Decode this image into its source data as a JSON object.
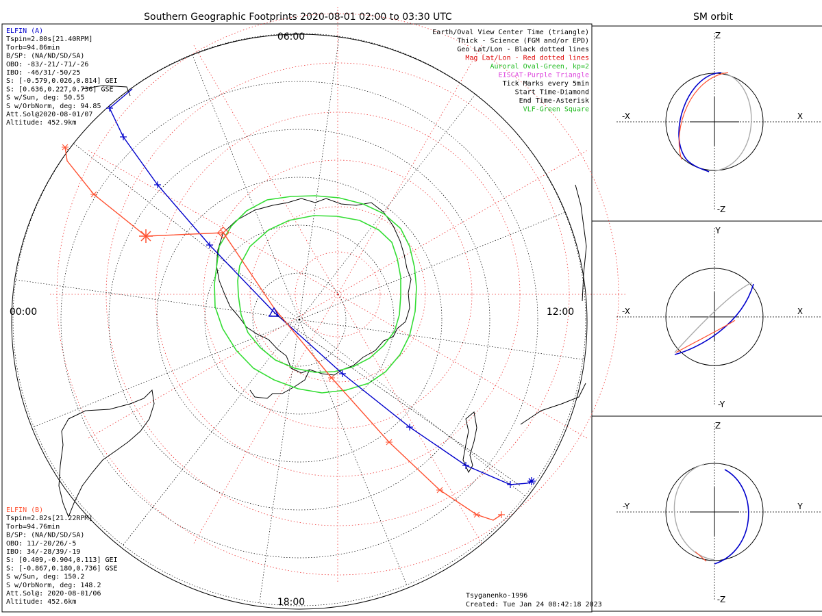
{
  "title": "Southern Geographic Footprints 2020-08-01 02:00 to 03:30 UTC",
  "right_title": "SM orbit",
  "clock_labels": {
    "top": "06:00",
    "right": "12:00",
    "bottom": "18:00",
    "left": "00:00"
  },
  "elfin_a": {
    "header": "ELFIN (A)",
    "color": "#0000cc",
    "lines": [
      "Tspin=2.80s[21.40RPM]",
      "Torb=94.86min",
      "B/SP: (NA/ND/SD/SA)",
      "OBO: -83/-21/-71/-26",
      "IBO: -46/31/-50/25",
      "S: [-0.579,0.026,0.814] GEI",
      "S: [0.636,0.227,0.736] GSE",
      "S w/Sun, deg: 50.55",
      "S w/OrbNorm, deg: 94.85",
      "Att.Sol@2020-08-01/07",
      "Altitude: 452.9km"
    ]
  },
  "elfin_b": {
    "header": "ELFIN (B)",
    "color": "#ff5030",
    "lines": [
      "Tspin=2.82s[21.22RPM]",
      "Torb=94.76min",
      "B/SP: (NA/ND/SD/SA)",
      "OBO: 11/-20/26/-5",
      "IBO: 34/-28/39/-19",
      "S: [0.409,-0.904,0.113] GEI",
      "S: [-0.867,0.180,0.736] GSE",
      "S w/Sun, deg: 150.2",
      "S w/OrbNorm, deg: 148.2",
      "Att.Sol@: 2020-08-01/06",
      "Altitude: 452.6km"
    ]
  },
  "legend": [
    {
      "text": "Earth/Oval View Center Time (triangle)",
      "color": "#000000"
    },
    {
      "text": "Thick - Science (FGM and/or EPD)",
      "color": "#000000"
    },
    {
      "text": "Geo Lat/Lon - Black dotted lines",
      "color": "#000000"
    },
    {
      "text": "Mag Lat/Lon - Red dotted lines",
      "color": "#dd0000"
    },
    {
      "text": "Auroral Oval-Green, kp=2",
      "color": "#22bb22"
    },
    {
      "text": "EISCAT-Purple Triangle",
      "color": "#dd44dd"
    },
    {
      "text": "Tick Marks every 5min",
      "color": "#000000"
    },
    {
      "text": "Start Time-Diamond",
      "color": "#000000"
    },
    {
      "text": "End Time-Asterisk",
      "color": "#000000"
    },
    {
      "text": "VLF-Green Square",
      "color": "#22bb22"
    }
  ],
  "credit": {
    "model": "Tsyganenko-1996",
    "created": "Created: Tue Jan 24 08:42:18 2023"
  },
  "panels": [
    {
      "top": "Z",
      "bottom": "-Z",
      "left": "-X",
      "right": "X"
    },
    {
      "top": "Y",
      "bottom": "-Y",
      "left": "-X",
      "right": "X"
    },
    {
      "top": "Z",
      "bottom": "-Z",
      "left": "-Y",
      "right": "Y"
    }
  ],
  "colors": {
    "elfin_a": "#0000cc",
    "elfin_b": "#ff5030",
    "oval": "#33dd33",
    "mag_grid": "#ee3333",
    "geo_grid": "#000000",
    "orbit_shadow": "#aaaaaa"
  }
}
